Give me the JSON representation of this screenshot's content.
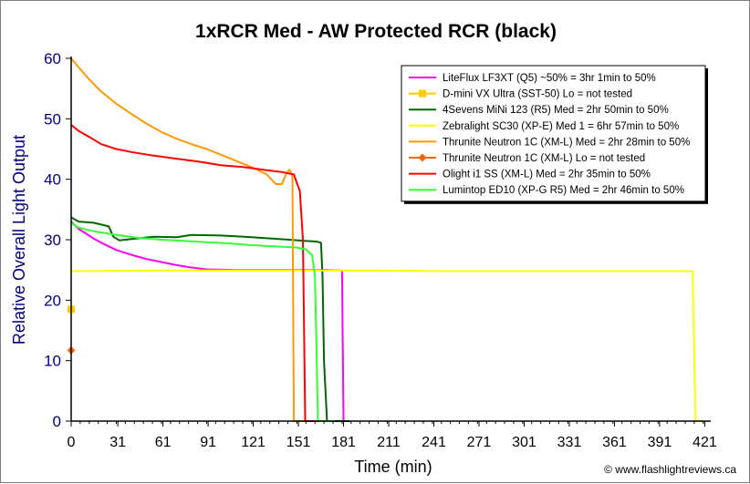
{
  "chart_data": {
    "type": "line",
    "title": "1xRCR Med - AW Protected RCR (black)",
    "xlabel": "Time (min)",
    "ylabel": "Relative Overall Light Output",
    "xlim": [
      0,
      425
    ],
    "ylim": [
      0,
      60
    ],
    "x_ticks": [
      0,
      31,
      61,
      91,
      121,
      151,
      181,
      211,
      241,
      271,
      301,
      331,
      361,
      391,
      421
    ],
    "y_ticks": [
      0,
      10,
      20,
      30,
      40,
      50,
      60
    ],
    "grid": false,
    "legend_position": "top-right",
    "credit": "© www.flashlightreviews.ca",
    "colors": {
      "ylabel": "#000080",
      "axis": "#000000"
    },
    "series": [
      {
        "name": "LiteFlux LF3XT (Q5) ~50% = 3hr 1min to 50%",
        "color": "#ff00ff",
        "marker": "none",
        "points": [
          [
            0,
            33
          ],
          [
            5,
            31.8
          ],
          [
            10,
            31
          ],
          [
            15,
            30.2
          ],
          [
            20,
            29.5
          ],
          [
            30,
            28.3
          ],
          [
            40,
            27.5
          ],
          [
            50,
            26.8
          ],
          [
            60,
            26.3
          ],
          [
            70,
            25.8
          ],
          [
            80,
            25.4
          ],
          [
            90,
            25.1
          ],
          [
            110,
            25
          ],
          [
            140,
            25
          ],
          [
            170,
            25
          ],
          [
            180,
            24.9
          ],
          [
            181,
            0
          ],
          [
            185,
            0
          ]
        ]
      },
      {
        "name": "D-mini VX Ultra (SST-50) Lo = not tested",
        "color": "#ffcc00",
        "marker": "square",
        "points": [
          [
            0,
            18.5
          ]
        ]
      },
      {
        "name": "4Sevens MiNi 123 (R5) Med = 2hr 50min to 50%",
        "color": "#006600",
        "marker": "none",
        "points": [
          [
            0,
            33.7
          ],
          [
            5,
            33
          ],
          [
            15,
            32.8
          ],
          [
            25,
            32.2
          ],
          [
            28,
            30.5
          ],
          [
            32,
            29.9
          ],
          [
            40,
            30.1
          ],
          [
            55,
            30.5
          ],
          [
            70,
            30.4
          ],
          [
            80,
            30.8
          ],
          [
            100,
            30.7
          ],
          [
            120,
            30.4
          ],
          [
            145,
            30
          ],
          [
            155,
            29.8
          ],
          [
            163,
            29.7
          ],
          [
            166,
            29.5
          ],
          [
            167,
            24
          ],
          [
            168,
            10
          ],
          [
            170,
            0
          ],
          [
            185,
            0
          ]
        ]
      },
      {
        "name": "Zebralight SC30 (XP-E) Med 1 = 6hr 57min to 50%",
        "color": "#ffff00",
        "marker": "none",
        "points": [
          [
            0,
            24.8
          ],
          [
            50,
            24.9
          ],
          [
            100,
            24.9
          ],
          [
            150,
            24.9
          ],
          [
            200,
            24.9
          ],
          [
            250,
            24.8
          ],
          [
            300,
            24.8
          ],
          [
            350,
            24.8
          ],
          [
            400,
            24.8
          ],
          [
            413,
            24.8
          ],
          [
            414,
            10
          ],
          [
            415,
            0
          ],
          [
            420,
            0
          ]
        ]
      },
      {
        "name": "Thrunite Neutron 1C (XM-L) Med = 2hr 28min to 50%",
        "color": "#ff9900",
        "marker": "none",
        "points": [
          [
            0,
            60
          ],
          [
            5,
            58.5
          ],
          [
            12,
            56.5
          ],
          [
            20,
            54.5
          ],
          [
            30,
            52.5
          ],
          [
            40,
            50.8
          ],
          [
            50,
            49.2
          ],
          [
            60,
            47.8
          ],
          [
            70,
            46.7
          ],
          [
            80,
            45.8
          ],
          [
            90,
            45
          ],
          [
            100,
            44
          ],
          [
            110,
            43
          ],
          [
            120,
            42
          ],
          [
            130,
            40.8
          ],
          [
            136,
            39.2
          ],
          [
            140,
            39.2
          ],
          [
            143,
            41
          ],
          [
            145,
            41.6
          ],
          [
            147,
            40.5
          ],
          [
            147.5,
            20
          ],
          [
            148,
            0
          ],
          [
            160,
            0
          ]
        ]
      },
      {
        "name": "Thrunite Neutron 1C (XM-L) Lo = not tested",
        "color": "#ff6600",
        "marker": "diamond",
        "points": [
          [
            0,
            11.7
          ]
        ]
      },
      {
        "name": "Olight i1 SS (XM-L) Med = 2hr 35min to 50%",
        "color": "#ff0000",
        "marker": "none",
        "points": [
          [
            0,
            49
          ],
          [
            5,
            48
          ],
          [
            12,
            47
          ],
          [
            20,
            45.8
          ],
          [
            30,
            45
          ],
          [
            40,
            44.5
          ],
          [
            55,
            43.9
          ],
          [
            70,
            43.4
          ],
          [
            85,
            42.9
          ],
          [
            100,
            42.3
          ],
          [
            115,
            42
          ],
          [
            130,
            41.5
          ],
          [
            140,
            41.2
          ],
          [
            148,
            40.8
          ],
          [
            152,
            38
          ],
          [
            154,
            30
          ],
          [
            155,
            10
          ],
          [
            155.5,
            0
          ],
          [
            165,
            0
          ]
        ]
      },
      {
        "name": "Lumintop ED10 (XP-G R5) Med = 2hr 46min to 50%",
        "color": "#33ff33",
        "marker": "none",
        "points": [
          [
            0,
            32.8
          ],
          [
            5,
            32
          ],
          [
            15,
            31.4
          ],
          [
            30,
            30.8
          ],
          [
            45,
            30.3
          ],
          [
            60,
            30
          ],
          [
            75,
            29.8
          ],
          [
            90,
            29.6
          ],
          [
            105,
            29.4
          ],
          [
            120,
            29.1
          ],
          [
            135,
            28.9
          ],
          [
            150,
            28.7
          ],
          [
            156,
            28.4
          ],
          [
            160,
            27.5
          ],
          [
            162,
            24
          ],
          [
            163,
            12
          ],
          [
            164,
            0
          ],
          [
            175,
            0
          ]
        ]
      }
    ]
  }
}
